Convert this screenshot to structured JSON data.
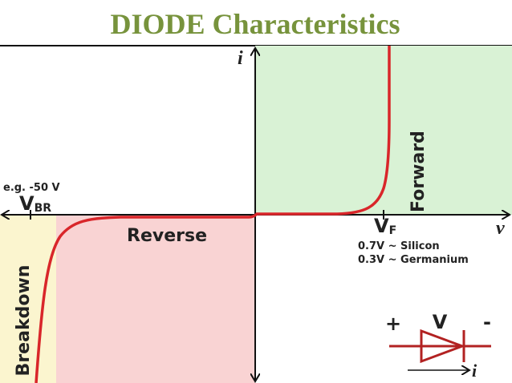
{
  "title": "DIODE Characteristics",
  "axes": {
    "y_label": "i",
    "x_label": "v"
  },
  "regions": {
    "forward": "Forward",
    "reverse": "Reverse",
    "breakdown": "Breakdown"
  },
  "breakdown_voltage": {
    "example": "e.g. -50 V",
    "symbol": "V",
    "subscript": "BR"
  },
  "forward_voltage": {
    "symbol": "V",
    "subscript": "F",
    "notes": [
      "0.7V ~ Silicon",
      "0.3V ~ Germanium"
    ]
  },
  "diode_symbol": {
    "plus": "+",
    "voltage": "V",
    "minus": "-",
    "current": "i"
  }
}
